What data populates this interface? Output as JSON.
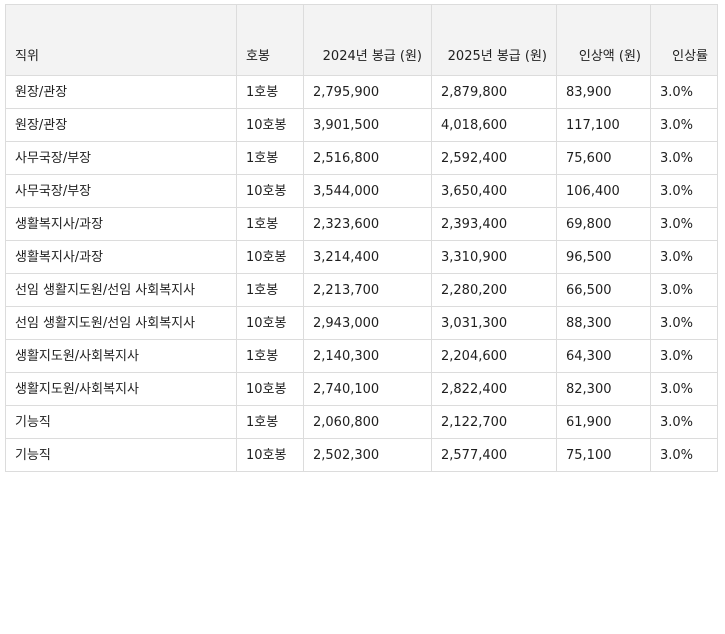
{
  "table": {
    "headers": {
      "position": "직위",
      "step": "호봉",
      "salary_2024": "2024년 봉급 (원)",
      "salary_2025": "2025년 봉급 (원)",
      "increase_amount": "인상액 (원)",
      "increase_rate": "인상률"
    },
    "rows": [
      {
        "position": "원장/관장",
        "step": "1호봉",
        "salary_2024": "2,795,900",
        "salary_2025": "2,879,800",
        "increase_amount": "83,900",
        "increase_rate": "3.0%"
      },
      {
        "position": "원장/관장",
        "step": "10호봉",
        "salary_2024": "3,901,500",
        "salary_2025": "4,018,600",
        "increase_amount": "117,100",
        "increase_rate": "3.0%"
      },
      {
        "position": "사무국장/부장",
        "step": "1호봉",
        "salary_2024": "2,516,800",
        "salary_2025": "2,592,400",
        "increase_amount": "75,600",
        "increase_rate": "3.0%"
      },
      {
        "position": "사무국장/부장",
        "step": "10호봉",
        "salary_2024": "3,544,000",
        "salary_2025": "3,650,400",
        "increase_amount": "106,400",
        "increase_rate": "3.0%"
      },
      {
        "position": "생활복지사/과장",
        "step": "1호봉",
        "salary_2024": "2,323,600",
        "salary_2025": "2,393,400",
        "increase_amount": "69,800",
        "increase_rate": "3.0%"
      },
      {
        "position": "생활복지사/과장",
        "step": "10호봉",
        "salary_2024": "3,214,400",
        "salary_2025": "3,310,900",
        "increase_amount": "96,500",
        "increase_rate": "3.0%"
      },
      {
        "position": "선임 생활지도원/선임 사회복지사",
        "step": "1호봉",
        "salary_2024": "2,213,700",
        "salary_2025": "2,280,200",
        "increase_amount": "66,500",
        "increase_rate": "3.0%"
      },
      {
        "position": "선임 생활지도원/선임 사회복지사",
        "step": "10호봉",
        "salary_2024": "2,943,000",
        "salary_2025": "3,031,300",
        "increase_amount": "88,300",
        "increase_rate": "3.0%"
      },
      {
        "position": "생활지도원/사회복지사",
        "step": "1호봉",
        "salary_2024": "2,140,300",
        "salary_2025": "2,204,600",
        "increase_amount": "64,300",
        "increase_rate": "3.0%"
      },
      {
        "position": "생활지도원/사회복지사",
        "step": "10호봉",
        "salary_2024": "2,740,100",
        "salary_2025": "2,822,400",
        "increase_amount": "82,300",
        "increase_rate": "3.0%"
      },
      {
        "position": "기능직",
        "step": "1호봉",
        "salary_2024": "2,060,800",
        "salary_2025": "2,122,700",
        "increase_amount": "61,900",
        "increase_rate": "3.0%"
      },
      {
        "position": "기능직",
        "step": "10호봉",
        "salary_2024": "2,502,300",
        "salary_2025": "2,577,400",
        "increase_amount": "75,100",
        "increase_rate": "3.0%"
      }
    ]
  }
}
